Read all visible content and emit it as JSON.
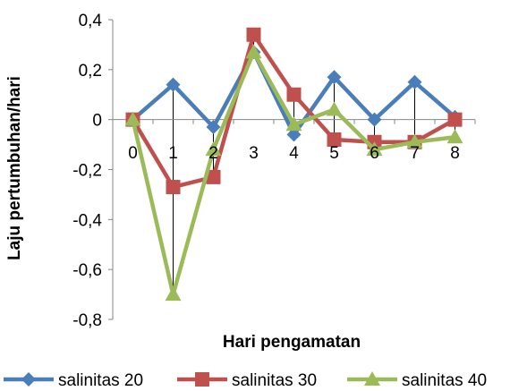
{
  "chart_data": {
    "type": "line",
    "title": "",
    "xlabel": "Hari pengamatan",
    "ylabel": "Laju pertumbuhan/hari",
    "x": [
      0,
      1,
      2,
      3,
      4,
      5,
      6,
      7,
      8
    ],
    "x_tick_labels": [
      "0",
      "1",
      "2",
      "3",
      "4",
      "5",
      "6",
      "7",
      "8"
    ],
    "y_tick_labels": [
      "0,4",
      "0,2",
      "0",
      "-0,2",
      "-0,4",
      "-0,6",
      "-0,8"
    ],
    "y_ticks": [
      0.4,
      0.2,
      0,
      -0.2,
      -0.4,
      -0.6,
      -0.8
    ],
    "ylim": [
      -0.8,
      0.4
    ],
    "grid": false,
    "legend_position": "bottom",
    "hi_lo_lines": true,
    "series": [
      {
        "name": "salinitas 20",
        "color": "#4a7ebb",
        "marker": "diamond",
        "values": [
          0,
          0.14,
          -0.03,
          0.27,
          -0.06,
          0.17,
          0.0,
          0.15,
          0.01
        ]
      },
      {
        "name": "salinitas 30",
        "color": "#c0504d",
        "marker": "square",
        "values": [
          0,
          -0.27,
          -0.23,
          0.34,
          0.1,
          -0.08,
          -0.09,
          -0.09,
          0.0
        ]
      },
      {
        "name": "salinitas 40",
        "color": "#9bbb59",
        "marker": "triangle",
        "values": [
          0,
          -0.7,
          -0.12,
          0.27,
          -0.02,
          0.04,
          -0.12,
          -0.09,
          -0.07
        ]
      }
    ]
  }
}
